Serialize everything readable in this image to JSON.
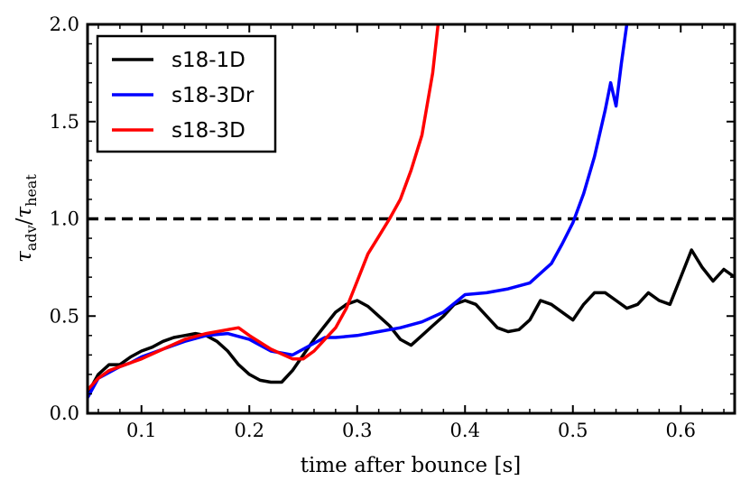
{
  "chart_data": {
    "type": "line",
    "title": "",
    "xlabel": "time after bounce [s]",
    "ylabel": {
      "main": "τ",
      "sub_num": "adv",
      "sep": "/",
      "main2": "τ",
      "sub_den": "heat"
    },
    "xlim": [
      0.05,
      0.65
    ],
    "ylim": [
      0.0,
      2.0
    ],
    "x_ticks": [
      0.1,
      0.2,
      0.3,
      0.4,
      0.5,
      0.6
    ],
    "x_tick_labels": [
      "0.1",
      "0.2",
      "0.3",
      "0.4",
      "0.5",
      "0.6"
    ],
    "y_ticks": [
      0.0,
      0.5,
      1.0,
      1.5,
      2.0
    ],
    "y_tick_labels": [
      "0.0",
      "0.5",
      "1.0",
      "1.5",
      "2.0"
    ],
    "grid": false,
    "legend_position": "top-left",
    "reference_line": {
      "y": 1.0,
      "style": "dashed",
      "color": "#000000"
    },
    "series": [
      {
        "name": "s18-1D",
        "color": "#000000",
        "x": [
          0.05,
          0.06,
          0.07,
          0.08,
          0.09,
          0.1,
          0.11,
          0.12,
          0.13,
          0.14,
          0.15,
          0.16,
          0.17,
          0.18,
          0.19,
          0.2,
          0.21,
          0.22,
          0.23,
          0.24,
          0.25,
          0.26,
          0.27,
          0.28,
          0.29,
          0.3,
          0.31,
          0.32,
          0.33,
          0.34,
          0.35,
          0.36,
          0.37,
          0.38,
          0.39,
          0.4,
          0.41,
          0.42,
          0.43,
          0.44,
          0.45,
          0.46,
          0.47,
          0.48,
          0.49,
          0.5,
          0.51,
          0.52,
          0.53,
          0.54,
          0.55,
          0.56,
          0.57,
          0.58,
          0.59,
          0.6,
          0.61,
          0.62,
          0.63,
          0.64,
          0.65
        ],
        "values": [
          0.1,
          0.2,
          0.25,
          0.25,
          0.29,
          0.32,
          0.34,
          0.37,
          0.39,
          0.4,
          0.41,
          0.4,
          0.37,
          0.32,
          0.25,
          0.2,
          0.17,
          0.16,
          0.16,
          0.22,
          0.3,
          0.38,
          0.45,
          0.52,
          0.56,
          0.58,
          0.55,
          0.5,
          0.45,
          0.38,
          0.35,
          0.4,
          0.45,
          0.5,
          0.56,
          0.58,
          0.56,
          0.5,
          0.44,
          0.42,
          0.43,
          0.48,
          0.58,
          0.56,
          0.52,
          0.48,
          0.56,
          0.62,
          0.62,
          0.58,
          0.54,
          0.56,
          0.62,
          0.58,
          0.56,
          0.7,
          0.84,
          0.75,
          0.68,
          0.74,
          0.7
        ]
      },
      {
        "name": "s18-3Dr",
        "color": "#0000ff",
        "x": [
          0.05,
          0.06,
          0.07,
          0.08,
          0.09,
          0.1,
          0.12,
          0.14,
          0.16,
          0.18,
          0.2,
          0.22,
          0.24,
          0.26,
          0.27,
          0.28,
          0.3,
          0.32,
          0.34,
          0.36,
          0.38,
          0.4,
          0.42,
          0.44,
          0.46,
          0.47,
          0.48,
          0.49,
          0.5,
          0.51,
          0.52,
          0.53,
          0.535,
          0.54,
          0.545,
          0.55
        ],
        "values": [
          0.08,
          0.18,
          0.21,
          0.24,
          0.26,
          0.29,
          0.33,
          0.37,
          0.4,
          0.41,
          0.38,
          0.32,
          0.3,
          0.36,
          0.39,
          0.39,
          0.4,
          0.42,
          0.44,
          0.47,
          0.52,
          0.61,
          0.62,
          0.64,
          0.67,
          0.72,
          0.77,
          0.87,
          0.98,
          1.13,
          1.32,
          1.56,
          1.7,
          1.58,
          1.8,
          2.0
        ]
      },
      {
        "name": "s18-3D",
        "color": "#ff0000",
        "x": [
          0.05,
          0.06,
          0.07,
          0.08,
          0.09,
          0.1,
          0.12,
          0.14,
          0.16,
          0.18,
          0.19,
          0.2,
          0.22,
          0.24,
          0.25,
          0.26,
          0.27,
          0.28,
          0.29,
          0.3,
          0.31,
          0.32,
          0.33,
          0.34,
          0.35,
          0.36,
          0.37,
          0.375
        ],
        "values": [
          0.12,
          0.18,
          0.22,
          0.24,
          0.26,
          0.28,
          0.33,
          0.38,
          0.41,
          0.43,
          0.44,
          0.4,
          0.33,
          0.28,
          0.28,
          0.32,
          0.38,
          0.44,
          0.54,
          0.68,
          0.82,
          0.91,
          1.0,
          1.1,
          1.25,
          1.43,
          1.75,
          2.0
        ]
      }
    ]
  }
}
